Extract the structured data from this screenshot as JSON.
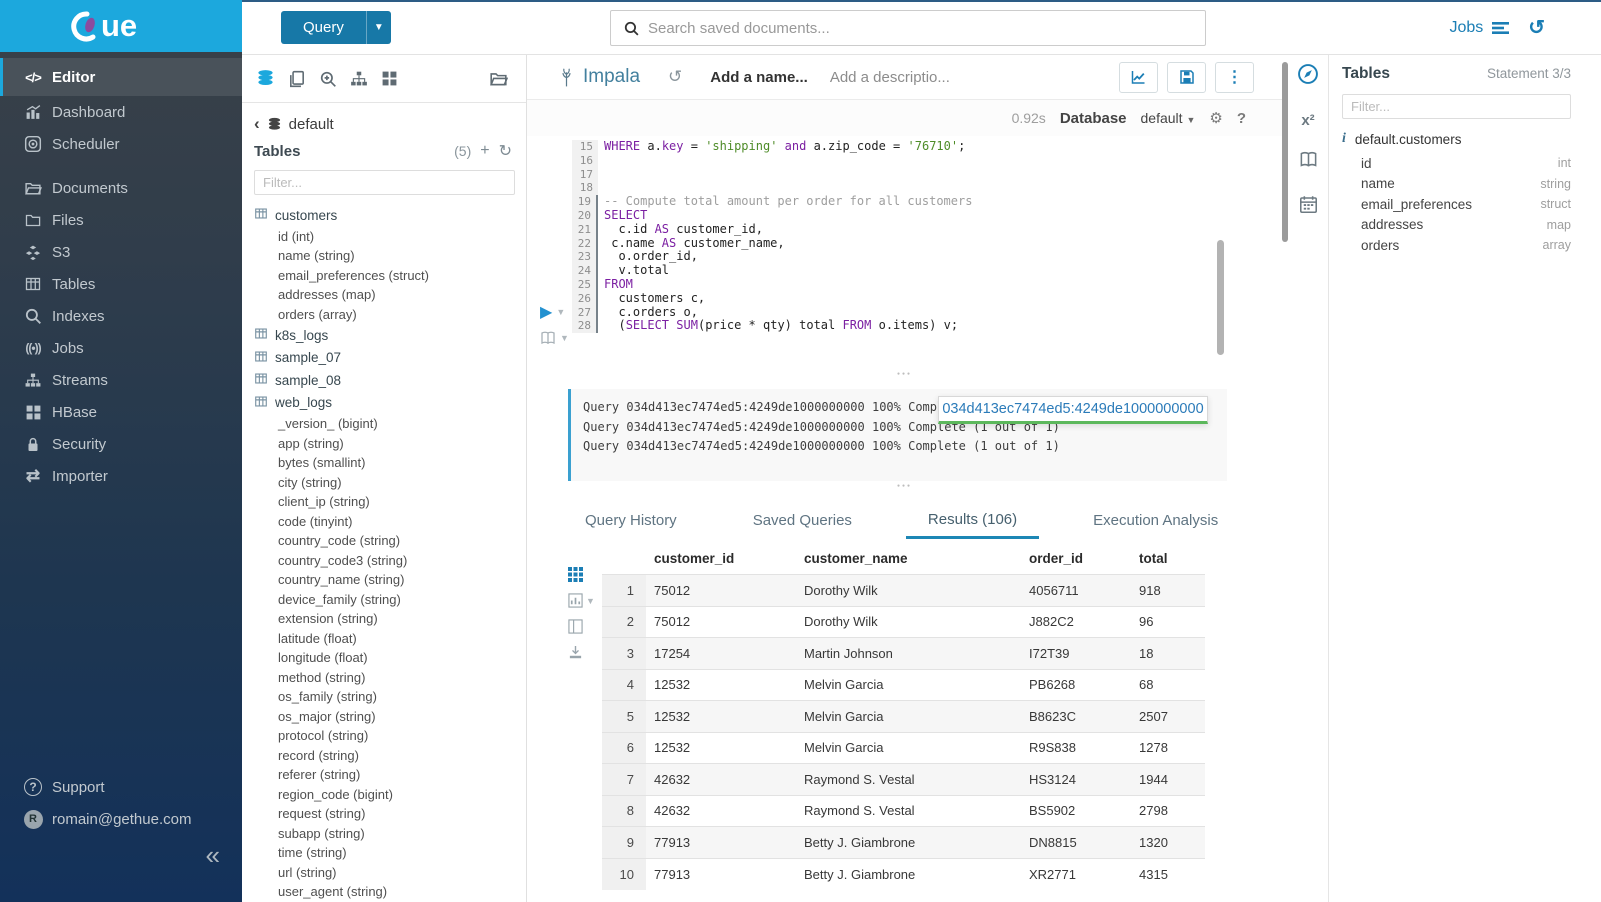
{
  "colors": {
    "accent": "#1ca8dd",
    "primary_button": "#1778a7",
    "link": "#1b7eb5",
    "keyword": "#7b1fa2",
    "string": "#4e8c28",
    "comment": "#9e9e9e",
    "tab_underline": "#1d87b5",
    "log_border": "#3aa0d0",
    "popover_underline": "#5cb85c"
  },
  "brand": {
    "name": "HUE"
  },
  "topbar": {
    "query_button": "Query",
    "search_placeholder": "Search saved documents...",
    "jobs_label": "Jobs"
  },
  "sidebar": {
    "items": [
      {
        "label": "Editor",
        "icon": "code",
        "active": true
      },
      {
        "label": "Dashboard",
        "icon": "dashboard"
      },
      {
        "label": "Scheduler",
        "icon": "scheduler"
      },
      {
        "label": "Documents",
        "icon": "documents",
        "gap": true
      },
      {
        "label": "Files",
        "icon": "files"
      },
      {
        "label": "S3",
        "icon": "s3"
      },
      {
        "label": "Tables",
        "icon": "tables"
      },
      {
        "label": "Indexes",
        "icon": "indexes"
      },
      {
        "label": "Jobs",
        "icon": "jobs"
      },
      {
        "label": "Streams",
        "icon": "streams"
      },
      {
        "label": "HBase",
        "icon": "hbase"
      },
      {
        "label": "Security",
        "icon": "security"
      },
      {
        "label": "Importer",
        "icon": "importer"
      }
    ],
    "support_label": "Support",
    "user_email": "romain@gethue.com",
    "user_initial": "R",
    "collapse_glyph": "«"
  },
  "left_assist": {
    "breadcrumb_db": "default",
    "tables_label": "Tables",
    "count": "(5)",
    "filter_placeholder": "Filter...",
    "tree": [
      {
        "name": "customers",
        "columns": [
          "id (int)",
          "name (string)",
          "email_preferences (struct)",
          "addresses (map)",
          "orders (array)"
        ]
      },
      {
        "name": "k8s_logs",
        "columns": []
      },
      {
        "name": "sample_07",
        "columns": []
      },
      {
        "name": "sample_08",
        "columns": []
      },
      {
        "name": "web_logs",
        "columns": [
          "_version_ (bigint)",
          "app (string)",
          "bytes (smallint)",
          "city (string)",
          "client_ip (string)",
          "code (tinyint)",
          "country_code (string)",
          "country_code3 (string)",
          "country_name (string)",
          "device_family (string)",
          "extension (string)",
          "latitude (float)",
          "longitude (float)",
          "method (string)",
          "os_family (string)",
          "os_major (string)",
          "protocol (string)",
          "record (string)",
          "referer (string)",
          "region_code (bigint)",
          "request (string)",
          "subapp (string)",
          "time (string)",
          "url (string)",
          "user_agent (string)"
        ]
      }
    ]
  },
  "editor": {
    "engine": "Impala",
    "name_placeholder": "Add a name...",
    "description_placeholder": "Add a descriptio...",
    "exec_time": "0.92s",
    "database_label": "Database",
    "database_value": "default",
    "code": [
      {
        "n": 15,
        "stmt": false,
        "t": [
          [
            "k",
            "WHERE"
          ],
          [
            "p",
            " a."
          ],
          [
            "k",
            "key"
          ],
          [
            "p",
            " = "
          ],
          [
            "s",
            "'shipping'"
          ],
          [
            "p",
            " "
          ],
          [
            "k",
            "and"
          ],
          [
            "p",
            " a.zip_code = "
          ],
          [
            "s",
            "'76710'"
          ],
          [
            "p",
            ";"
          ]
        ]
      },
      {
        "n": 16,
        "stmt": false,
        "t": []
      },
      {
        "n": 17,
        "stmt": false,
        "t": []
      },
      {
        "n": 18,
        "stmt": false,
        "t": []
      },
      {
        "n": 19,
        "stmt": true,
        "t": [
          [
            "c",
            "-- Compute total amount per order for all customers"
          ]
        ]
      },
      {
        "n": 20,
        "stmt": true,
        "t": [
          [
            "k",
            "SELECT"
          ]
        ]
      },
      {
        "n": 21,
        "stmt": true,
        "t": [
          [
            "p",
            "  c.id "
          ],
          [
            "k",
            "AS"
          ],
          [
            "p",
            " customer_id,"
          ]
        ]
      },
      {
        "n": 22,
        "stmt": true,
        "t": [
          [
            "p",
            " c.name "
          ],
          [
            "k",
            "AS"
          ],
          [
            "p",
            " customer_name,"
          ]
        ]
      },
      {
        "n": 23,
        "stmt": true,
        "t": [
          [
            "p",
            "  o.order_id,"
          ]
        ]
      },
      {
        "n": 24,
        "stmt": true,
        "t": [
          [
            "p",
            "  v.total"
          ]
        ]
      },
      {
        "n": 25,
        "stmt": true,
        "t": [
          [
            "k",
            "FROM"
          ]
        ]
      },
      {
        "n": 26,
        "stmt": true,
        "t": [
          [
            "p",
            "  customers c,"
          ]
        ]
      },
      {
        "n": 27,
        "stmt": true,
        "t": [
          [
            "p",
            "  c.orders o,"
          ]
        ]
      },
      {
        "n": 28,
        "stmt": true,
        "t": [
          [
            "p",
            "  ("
          ],
          [
            "k",
            "SELECT"
          ],
          [
            "p",
            " "
          ],
          [
            "k",
            "SUM"
          ],
          [
            "p",
            "(price * qty) total "
          ],
          [
            "k",
            "FROM"
          ],
          [
            "p",
            " o.items) v;"
          ]
        ]
      }
    ]
  },
  "log": {
    "lines": [
      "Query 034d413ec7474ed5:4249de1000000000 100% Complete (1 out of 1)",
      "Query 034d413ec7474ed5:4249de1000000000 100% Complete (1 out of 1)",
      "Query 034d413ec7474ed5:4249de1000000000 100% Complete (1 out of 1)"
    ],
    "popover": "034d413ec7474ed5:4249de1000000000"
  },
  "tabs": [
    {
      "label": "Query History"
    },
    {
      "label": "Saved Queries"
    },
    {
      "label": "Results (106)",
      "active": true
    },
    {
      "label": "Execution Analysis"
    }
  ],
  "results": {
    "columns": [
      "customer_id",
      "customer_name",
      "order_id",
      "total"
    ],
    "rows": [
      [
        "1",
        "75012",
        "Dorothy Wilk",
        "4056711",
        "918"
      ],
      [
        "2",
        "75012",
        "Dorothy Wilk",
        "J882C2",
        "96"
      ],
      [
        "3",
        "17254",
        "Martin Johnson",
        "I72T39",
        "18"
      ],
      [
        "4",
        "12532",
        "Melvin Garcia",
        "PB6268",
        "68"
      ],
      [
        "5",
        "12532",
        "Melvin Garcia",
        "B8623C",
        "2507"
      ],
      [
        "6",
        "12532",
        "Melvin Garcia",
        "R9S838",
        "1278"
      ],
      [
        "7",
        "42632",
        "Raymond S. Vestal",
        "HS3124",
        "1944"
      ],
      [
        "8",
        "42632",
        "Raymond S. Vestal",
        "BS5902",
        "2798"
      ],
      [
        "9",
        "77913",
        "Betty J. Giambrone",
        "DN8815",
        "1320"
      ],
      [
        "10",
        "77913",
        "Betty J. Giambrone",
        "XR2771",
        "4315"
      ]
    ]
  },
  "right_assist": {
    "title": "Tables",
    "statement": "Statement 3/3",
    "filter_placeholder": "Filter...",
    "table": "default.customers",
    "columns": [
      {
        "name": "id",
        "type": "int"
      },
      {
        "name": "name",
        "type": "string"
      },
      {
        "name": "email_preferences",
        "type": "struct"
      },
      {
        "name": "addresses",
        "type": "map"
      },
      {
        "name": "orders",
        "type": "array"
      }
    ]
  }
}
